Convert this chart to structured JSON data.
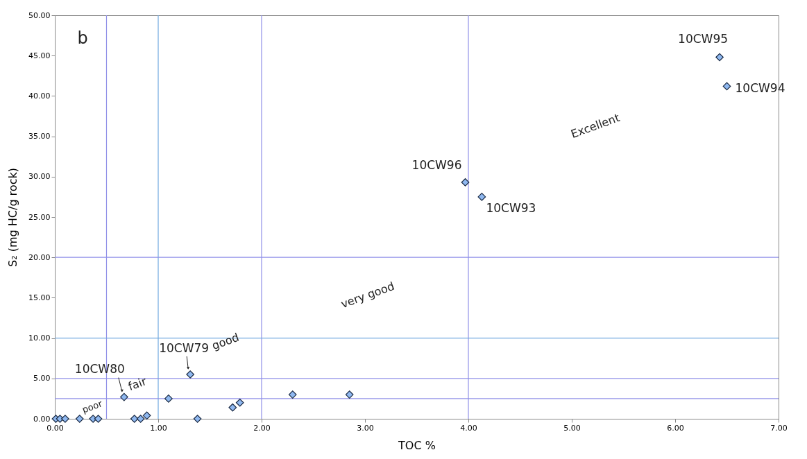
{
  "chart_data": {
    "type": "scatter",
    "xlabel": "TOC %",
    "ylabel": "S₂ (mg HC/g rock)",
    "marker": "diamond",
    "grid": false,
    "x": [
      0.01,
      0.05,
      0.1,
      0.24,
      0.37,
      0.42,
      0.67,
      0.77,
      0.83,
      0.89,
      1.1,
      1.31,
      1.38,
      1.72,
      1.79,
      2.3,
      2.85,
      3.97,
      4.13,
      6.43,
      6.5
    ],
    "series": [
      {
        "color": "#8fb8f0",
        "values": [
          0,
          0,
          0,
          0,
          0,
          0,
          2.7,
          0,
          0,
          0.4,
          2.5,
          5.5,
          0,
          1.4,
          2,
          3,
          3,
          29.3,
          27.5,
          44.8,
          41.2
        ]
      }
    ],
    "xlim": [
      0,
      7
    ],
    "ylim": [
      0,
      50
    ],
    "xticks": [
      {
        "value": 0,
        "label": "0.00"
      },
      {
        "value": 1,
        "label": "1.00"
      },
      {
        "value": 2,
        "label": "2.00"
      },
      {
        "value": 3,
        "label": "3.00"
      },
      {
        "value": 4,
        "label": "4.00"
      },
      {
        "value": 5,
        "label": "5.00"
      },
      {
        "value": 6,
        "label": "6.00"
      },
      {
        "value": 7,
        "label": "7.00"
      }
    ],
    "yticks": [
      {
        "value": 0,
        "label": "0.00"
      },
      {
        "value": 5,
        "label": "5.00"
      },
      {
        "value": 10,
        "label": "10.00"
      },
      {
        "value": 15,
        "label": "15.00"
      },
      {
        "value": 20,
        "label": "20.00"
      },
      {
        "value": 25,
        "label": "25.00"
      },
      {
        "value": 30,
        "label": "30.00"
      },
      {
        "value": 35,
        "label": "35.00"
      },
      {
        "value": 40,
        "label": "40.00"
      },
      {
        "value": 45,
        "label": "45.00"
      },
      {
        "value": 50,
        "label": "50.00"
      }
    ],
    "ref_lines": [
      {
        "axis": "x",
        "value": 0.5,
        "color": "#9090e8"
      },
      {
        "axis": "x",
        "value": 1,
        "color": "#70a8e0"
      },
      {
        "axis": "x",
        "value": 2,
        "color": "#9090e8"
      },
      {
        "axis": "x",
        "value": 4,
        "color": "#9090e8"
      },
      {
        "axis": "y",
        "value": 2.5,
        "color": "#9090e8"
      },
      {
        "axis": "y",
        "value": 5,
        "color": "#9090e8"
      },
      {
        "axis": "y",
        "value": 10,
        "color": "#70a8e0"
      },
      {
        "axis": "y",
        "value": 20,
        "color": "#9090e8"
      }
    ],
    "annotations": [
      "b",
      {
        "text": "10CW95",
        "x": 6.43,
        "y": 44.8
      },
      {
        "text": "10CW94",
        "x": 6.5,
        "y": 41.2
      },
      {
        "text": "10CW96",
        "x": 3.97,
        "y": 29.3
      },
      {
        "text": "10CW93",
        "x": 4.13,
        "y": 27.5
      },
      {
        "text": "10CW79",
        "x": 1.31,
        "y": 5.5
      },
      {
        "text": "10CW80",
        "x": 0.67,
        "y": 2.7
      },
      "poor",
      "fair",
      "good",
      "very good",
      "Excellent"
    ]
  }
}
